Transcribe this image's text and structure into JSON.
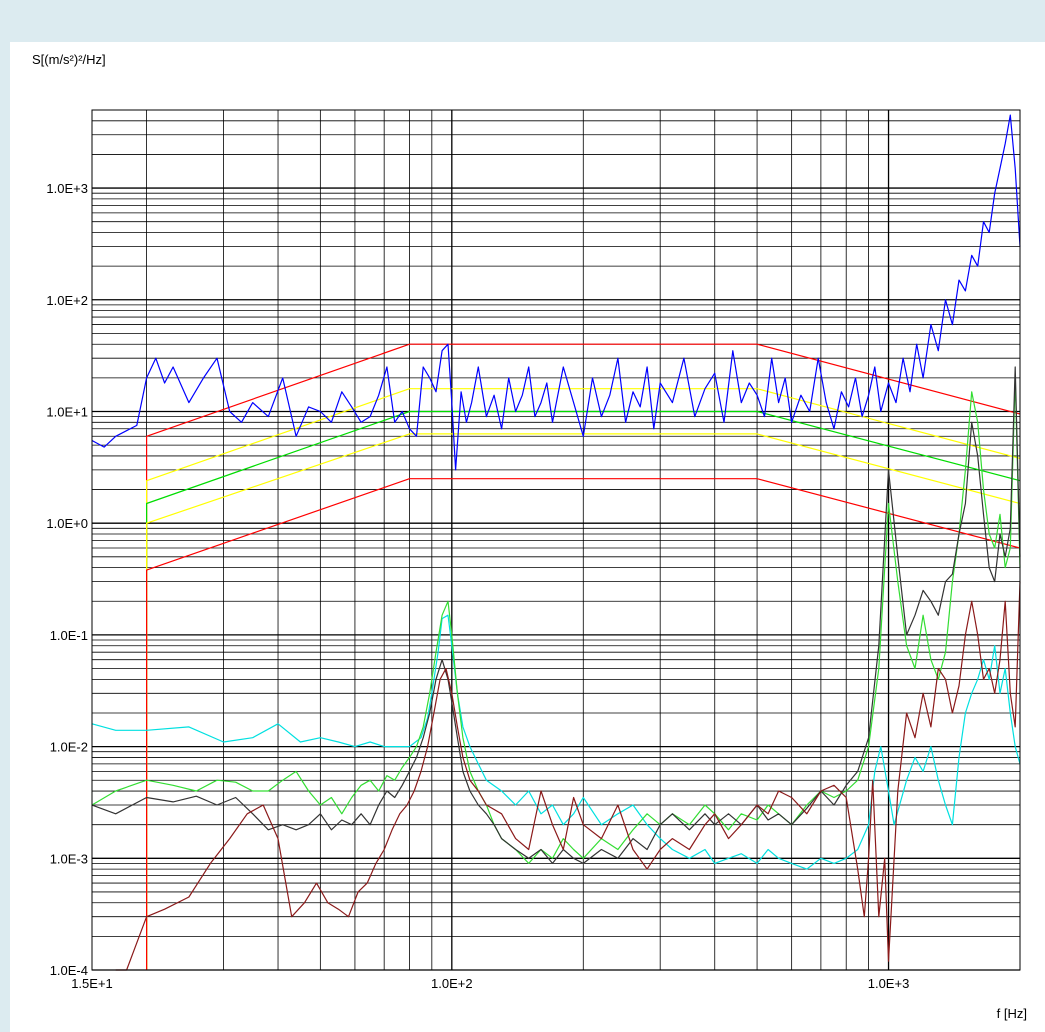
{
  "chart_data": {
    "type": "line",
    "ylabel": "S[(m/s²)²/Hz]",
    "xlabel": "f [Hz]",
    "x_scale": "log",
    "y_scale": "log",
    "xlim": [
      15,
      2000
    ],
    "ylim": [
      0.0001,
      5000
    ],
    "grid": true,
    "x_tick_labels": [
      {
        "value": 15,
        "label": "1.5E+1"
      },
      {
        "value": 100,
        "label": "1.0E+2"
      },
      {
        "value": 1000,
        "label": "1.0E+3"
      }
    ],
    "y_tick_labels": [
      {
        "value": 0.0001,
        "label": "1.0E-4"
      },
      {
        "value": 0.001,
        "label": "1.0E-3"
      },
      {
        "value": 0.01,
        "label": "1.0E-2"
      },
      {
        "value": 0.1,
        "label": "1.0E-1"
      },
      {
        "value": 1,
        "label": "1.0E+0"
      },
      {
        "value": 10,
        "label": "1.0E+1"
      },
      {
        "value": 100,
        "label": "1.0E+2"
      },
      {
        "value": 1000,
        "label": "1.0E+3"
      }
    ],
    "series": [
      {
        "color": "#ff0000",
        "x": [
          20,
          20,
          80,
          500,
          2000
        ],
        "y": [
          0.0001,
          6,
          40,
          40,
          9.5
        ]
      },
      {
        "color": "#ffff00",
        "x": [
          20,
          20,
          80,
          500,
          2000
        ],
        "y": [
          0.0001,
          2.4,
          16,
          16,
          3.8
        ]
      },
      {
        "color": "#00dd00",
        "x": [
          20,
          20,
          80,
          500,
          2000
        ],
        "y": [
          0.0001,
          1.5,
          10,
          10,
          2.4
        ]
      },
      {
        "color": "#ffff00",
        "x": [
          20,
          20,
          80,
          500,
          2000
        ],
        "y": [
          0.0001,
          1.0,
          6.3,
          6.3,
          1.5
        ]
      },
      {
        "color": "#ff0000",
        "x": [
          20,
          20,
          80,
          500,
          2000
        ],
        "y": [
          0.0001,
          0.38,
          2.5,
          2.5,
          0.6
        ]
      },
      {
        "color": "#0000ff",
        "x": [
          15,
          16,
          17,
          19,
          20,
          21,
          22,
          23,
          25,
          27,
          29,
          31,
          33,
          35,
          38,
          41,
          44,
          47,
          50,
          53,
          56,
          59,
          62,
          65,
          68,
          71,
          74,
          77,
          80,
          83,
          86,
          89,
          92,
          95,
          98,
          100,
          102,
          105,
          108,
          111,
          115,
          120,
          125,
          130,
          135,
          140,
          145,
          150,
          155,
          160,
          165,
          170,
          180,
          190,
          200,
          210,
          220,
          230,
          240,
          250,
          260,
          270,
          280,
          290,
          300,
          320,
          340,
          360,
          380,
          400,
          420,
          440,
          460,
          480,
          500,
          520,
          540,
          560,
          580,
          600,
          630,
          660,
          690,
          720,
          750,
          780,
          810,
          840,
          870,
          900,
          930,
          960,
          1000,
          1040,
          1080,
          1120,
          1160,
          1200,
          1250,
          1300,
          1350,
          1400,
          1450,
          1500,
          1550,
          1600,
          1650,
          1700,
          1750,
          1800,
          1850,
          1900,
          1950,
          2000
        ],
        "y": [
          5.5,
          4.8,
          6,
          7.5,
          20,
          30,
          18,
          25,
          12,
          20,
          30,
          10,
          8,
          12,
          9,
          20,
          6,
          11,
          10,
          8,
          15,
          11,
          8,
          9,
          14,
          25,
          8,
          10,
          7,
          6,
          25,
          20,
          15,
          35,
          40,
          12,
          3,
          15,
          8,
          12,
          25,
          9,
          14,
          7,
          20,
          10,
          14,
          25,
          9,
          12,
          18,
          8,
          25,
          12,
          6,
          20,
          9,
          14,
          30,
          8,
          15,
          11,
          25,
          7,
          18,
          12,
          30,
          9,
          16,
          22,
          8,
          35,
          12,
          18,
          14,
          9,
          30,
          12,
          20,
          8,
          14,
          10,
          30,
          12,
          7,
          15,
          11,
          20,
          9,
          14,
          25,
          10,
          18,
          12,
          30,
          15,
          40,
          20,
          60,
          35,
          100,
          60,
          150,
          120,
          250,
          200,
          500,
          400,
          900,
          1500,
          2500,
          4500,
          1500,
          300
        ]
      },
      {
        "color": "#00e0e0",
        "x": [
          15,
          17,
          20,
          25,
          30,
          35,
          40,
          45,
          50,
          55,
          60,
          65,
          70,
          75,
          80,
          85,
          88,
          90,
          93,
          95,
          98,
          100,
          103,
          106,
          110,
          115,
          120,
          130,
          140,
          150,
          160,
          170,
          180,
          190,
          200,
          220,
          240,
          260,
          280,
          300,
          320,
          350,
          380,
          400,
          430,
          460,
          500,
          530,
          560,
          600,
          650,
          700,
          750,
          800,
          850,
          900,
          930,
          960,
          1000,
          1030,
          1060,
          1100,
          1150,
          1200,
          1250,
          1300,
          1350,
          1400,
          1450,
          1500,
          1550,
          1600,
          1650,
          1700,
          1750,
          1800,
          1850,
          1900,
          1950,
          2000
        ],
        "y": [
          0.016,
          0.014,
          0.014,
          0.015,
          0.011,
          0.012,
          0.016,
          0.011,
          0.012,
          0.011,
          0.01,
          0.011,
          0.01,
          0.01,
          0.01,
          0.012,
          0.018,
          0.03,
          0.07,
          0.14,
          0.15,
          0.08,
          0.03,
          0.015,
          0.01,
          0.007,
          0.005,
          0.004,
          0.003,
          0.004,
          0.0025,
          0.003,
          0.002,
          0.0025,
          0.0035,
          0.002,
          0.0025,
          0.003,
          0.002,
          0.0015,
          0.0012,
          0.001,
          0.0012,
          0.0009,
          0.001,
          0.0011,
          0.0009,
          0.0012,
          0.001,
          0.0009,
          0.0008,
          0.001,
          0.0009,
          0.001,
          0.0012,
          0.002,
          0.006,
          0.01,
          0.004,
          0.002,
          0.003,
          0.005,
          0.008,
          0.006,
          0.01,
          0.005,
          0.003,
          0.002,
          0.008,
          0.02,
          0.03,
          0.04,
          0.06,
          0.04,
          0.08,
          0.03,
          0.05,
          0.02,
          0.01,
          0.007
        ]
      },
      {
        "color": "#33dd33",
        "x": [
          15,
          17,
          20,
          23,
          26,
          29,
          32,
          35,
          38,
          41,
          44,
          47,
          50,
          53,
          56,
          59,
          62,
          65,
          68,
          71,
          74,
          77,
          80,
          83,
          86,
          89,
          92,
          95,
          98,
          100,
          103,
          106,
          110,
          115,
          120,
          125,
          130,
          140,
          150,
          160,
          170,
          180,
          190,
          200,
          220,
          240,
          260,
          280,
          300,
          320,
          350,
          380,
          400,
          430,
          460,
          500,
          530,
          560,
          600,
          650,
          700,
          750,
          800,
          850,
          900,
          950,
          1000,
          1050,
          1100,
          1150,
          1200,
          1250,
          1300,
          1350,
          1400,
          1450,
          1500,
          1550,
          1600,
          1650,
          1700,
          1750,
          1800,
          1850,
          1900,
          1950,
          2000
        ],
        "y": [
          0.003,
          0.004,
          0.005,
          0.0045,
          0.004,
          0.005,
          0.0048,
          0.004,
          0.004,
          0.005,
          0.006,
          0.004,
          0.003,
          0.0035,
          0.0025,
          0.0035,
          0.0045,
          0.005,
          0.004,
          0.0055,
          0.005,
          0.0065,
          0.008,
          0.01,
          0.015,
          0.03,
          0.07,
          0.15,
          0.2,
          0.1,
          0.03,
          0.012,
          0.006,
          0.004,
          0.003,
          0.002,
          0.0015,
          0.0012,
          0.0009,
          0.0012,
          0.001,
          0.0015,
          0.0012,
          0.001,
          0.0015,
          0.0012,
          0.0018,
          0.0025,
          0.002,
          0.0025,
          0.002,
          0.003,
          0.0025,
          0.0018,
          0.0025,
          0.0022,
          0.003,
          0.0025,
          0.002,
          0.003,
          0.004,
          0.0035,
          0.004,
          0.005,
          0.01,
          0.05,
          1.5,
          0.3,
          0.08,
          0.05,
          0.15,
          0.06,
          0.04,
          0.07,
          0.3,
          0.8,
          3,
          15,
          8,
          2,
          0.8,
          0.6,
          1.2,
          0.4,
          0.6,
          20,
          0.4
        ]
      },
      {
        "color": "#333333",
        "x": [
          15,
          17,
          20,
          23,
          26,
          29,
          32,
          35,
          38,
          41,
          44,
          47,
          50,
          53,
          56,
          59,
          62,
          65,
          68,
          71,
          74,
          77,
          80,
          83,
          86,
          89,
          92,
          95,
          98,
          100,
          103,
          106,
          110,
          115,
          120,
          125,
          130,
          140,
          150,
          160,
          170,
          180,
          190,
          200,
          220,
          240,
          260,
          280,
          300,
          320,
          350,
          380,
          400,
          430,
          460,
          500,
          530,
          560,
          600,
          650,
          700,
          750,
          800,
          850,
          900,
          950,
          1000,
          1050,
          1100,
          1150,
          1200,
          1250,
          1300,
          1350,
          1400,
          1450,
          1500,
          1550,
          1600,
          1650,
          1700,
          1750,
          1800,
          1850,
          1900,
          1950,
          2000
        ],
        "y": [
          0.003,
          0.0025,
          0.0035,
          0.0032,
          0.0036,
          0.003,
          0.0035,
          0.0025,
          0.0018,
          0.002,
          0.0018,
          0.002,
          0.0025,
          0.0018,
          0.0022,
          0.002,
          0.0025,
          0.002,
          0.003,
          0.004,
          0.0035,
          0.0045,
          0.006,
          0.008,
          0.012,
          0.02,
          0.04,
          0.06,
          0.04,
          0.025,
          0.012,
          0.006,
          0.004,
          0.003,
          0.0025,
          0.002,
          0.0015,
          0.0012,
          0.001,
          0.0012,
          0.0009,
          0.0012,
          0.001,
          0.0009,
          0.0012,
          0.001,
          0.0015,
          0.0012,
          0.002,
          0.0025,
          0.0018,
          0.0025,
          0.002,
          0.0025,
          0.002,
          0.003,
          0.0022,
          0.0025,
          0.002,
          0.0028,
          0.004,
          0.003,
          0.0045,
          0.006,
          0.012,
          0.08,
          3,
          0.5,
          0.1,
          0.15,
          0.25,
          0.2,
          0.15,
          0.3,
          0.35,
          0.8,
          1.5,
          8,
          4,
          1.2,
          0.4,
          0.3,
          0.8,
          0.5,
          0.9,
          25,
          0.5
        ]
      },
      {
        "color": "#8b1a1a",
        "x": [
          17,
          18,
          20,
          22,
          25,
          28,
          31,
          34,
          37,
          40,
          43,
          46,
          49,
          52,
          55,
          58,
          61,
          64,
          67,
          70,
          73,
          76,
          79,
          82,
          85,
          88,
          91,
          94,
          97,
          100,
          103,
          106,
          110,
          115,
          120,
          130,
          140,
          150,
          160,
          170,
          180,
          190,
          200,
          220,
          240,
          260,
          280,
          300,
          320,
          350,
          380,
          400,
          430,
          460,
          500,
          530,
          560,
          600,
          650,
          700,
          750,
          800,
          850,
          880,
          900,
          920,
          950,
          980,
          1000,
          1050,
          1100,
          1150,
          1200,
          1250,
          1300,
          1350,
          1400,
          1450,
          1500,
          1550,
          1600,
          1650,
          1700,
          1750,
          1800,
          1850,
          1900,
          1950,
          2000
        ],
        "y": [
          9e-05,
          0.0001,
          0.0003,
          0.00035,
          0.00045,
          0.0009,
          0.0015,
          0.0025,
          0.003,
          0.0015,
          0.0003,
          0.0004,
          0.0006,
          0.0004,
          0.00035,
          0.0003,
          0.0005,
          0.0006,
          0.0009,
          0.0012,
          0.0018,
          0.0025,
          0.003,
          0.004,
          0.006,
          0.01,
          0.02,
          0.04,
          0.05,
          0.03,
          0.015,
          0.008,
          0.005,
          0.004,
          0.003,
          0.0025,
          0.0015,
          0.0012,
          0.004,
          0.002,
          0.0012,
          0.0035,
          0.002,
          0.0015,
          0.003,
          0.0012,
          0.0008,
          0.0012,
          0.0015,
          0.0012,
          0.002,
          0.0025,
          0.0015,
          0.002,
          0.003,
          0.0025,
          0.004,
          0.0035,
          0.0025,
          0.004,
          0.0045,
          0.0035,
          0.0008,
          0.0003,
          0.001,
          0.005,
          0.0003,
          0.001,
          0.00012,
          0.004,
          0.02,
          0.012,
          0.03,
          0.015,
          0.05,
          0.04,
          0.02,
          0.035,
          0.1,
          0.2,
          0.1,
          0.04,
          0.05,
          0.03,
          0.06,
          0.2,
          0.03,
          0.015,
          0.3
        ]
      }
    ]
  }
}
